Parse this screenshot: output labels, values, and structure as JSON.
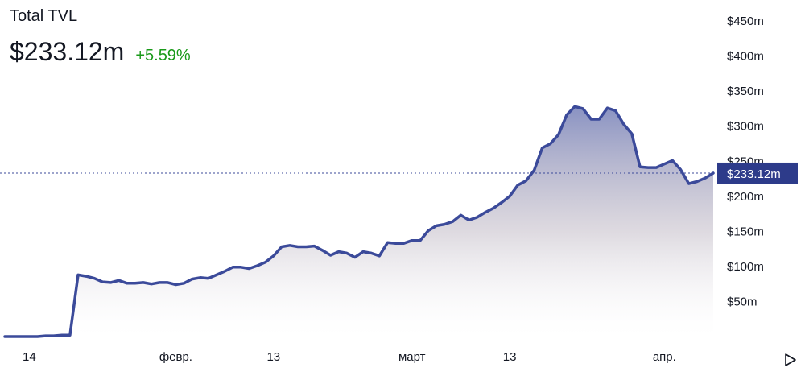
{
  "header": {
    "title": "Total TVL",
    "value": "$233.12m",
    "change": "+5.59%"
  },
  "colors": {
    "line": "#3b4a9a",
    "change": "#1a9a1a",
    "label_bg": "#2d3b8a"
  },
  "icons": {
    "playback": "play-icon"
  },
  "chart_data": {
    "type": "area",
    "ylabel_unit": "$m",
    "ylim": [
      0,
      450
    ],
    "y_ticks": [
      {
        "value": 50,
        "label": "$50m"
      },
      {
        "value": 100,
        "label": "$100m"
      },
      {
        "value": 150,
        "label": "$150m"
      },
      {
        "value": 200,
        "label": "$200m"
      },
      {
        "value": 250,
        "label": "$250m"
      },
      {
        "value": 300,
        "label": "$300m"
      },
      {
        "value": 350,
        "label": "$350m"
      },
      {
        "value": 400,
        "label": "$400m"
      },
      {
        "value": 450,
        "label": "$450m"
      }
    ],
    "x_ticks": [
      {
        "x": 2,
        "label": "14"
      },
      {
        "x": 20,
        "label": "февр."
      },
      {
        "x": 32,
        "label": "13"
      },
      {
        "x": 49,
        "label": "март"
      },
      {
        "x": 61,
        "label": "13"
      },
      {
        "x": 80,
        "label": "апр."
      }
    ],
    "x": [
      -1,
      0,
      1,
      2,
      3,
      4,
      5,
      6,
      7,
      8,
      9,
      10,
      11,
      12,
      13,
      14,
      15,
      16,
      17,
      18,
      19,
      20,
      21,
      22,
      23,
      24,
      25,
      26,
      27,
      28,
      29,
      30,
      31,
      32,
      33,
      34,
      35,
      36,
      37,
      38,
      39,
      40,
      41,
      42,
      43,
      44,
      45,
      46,
      47,
      48,
      49,
      50,
      51,
      52,
      53,
      54,
      55,
      56,
      57,
      58,
      59,
      60,
      61,
      62,
      63,
      64,
      65,
      66,
      67,
      68,
      69,
      70,
      71,
      72,
      73,
      74,
      75,
      76,
      77,
      78,
      79,
      80,
      81,
      82,
      83,
      84,
      85,
      86
    ],
    "values": [
      0,
      0,
      0,
      0,
      0,
      1,
      1,
      2,
      2,
      88,
      86,
      83,
      78,
      77,
      80,
      76,
      76,
      77,
      75,
      77,
      77,
      74,
      76,
      82,
      84,
      83,
      88,
      93,
      99,
      99,
      97,
      101,
      106,
      115,
      128,
      130,
      128,
      128,
      129,
      123,
      116,
      121,
      119,
      113,
      121,
      119,
      115,
      134,
      133,
      133,
      137,
      137,
      151,
      158,
      160,
      164,
      173,
      166,
      170,
      177,
      183,
      191,
      200,
      216,
      222,
      237,
      269,
      275,
      288,
      316,
      328,
      325,
      310,
      310,
      326,
      322,
      303,
      289,
      242,
      241,
      241,
      246,
      251,
      238,
      218,
      221,
      226,
      233.12
    ],
    "current": {
      "value": 233.12,
      "label": "$233.12m"
    }
  }
}
